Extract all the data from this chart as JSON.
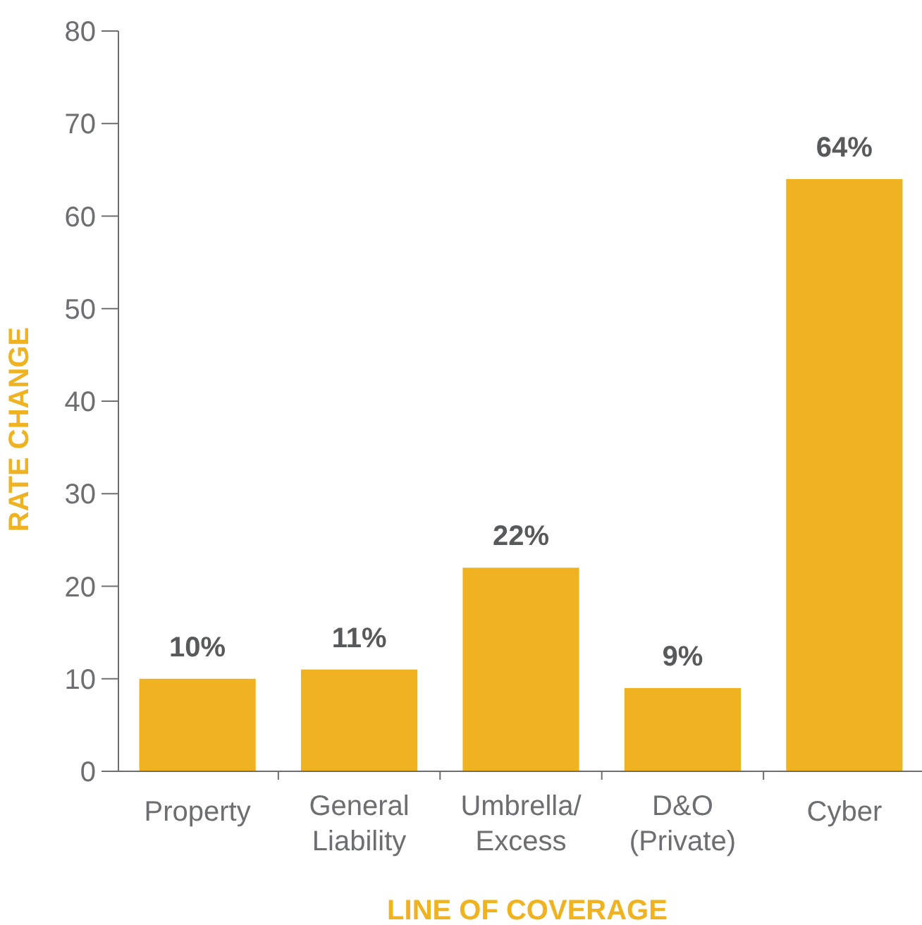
{
  "chart_data": {
    "type": "bar",
    "xlabel": "LINE OF COVERAGE",
    "ylabel": "RATE CHANGE",
    "categories": [
      "Property",
      "General Liability",
      "Umbrella/Excess",
      "D&O (Private)",
      "Cyber"
    ],
    "values": [
      10,
      11,
      22,
      9,
      64
    ],
    "value_labels": [
      "10%",
      "11%",
      "22%",
      "9%",
      "64%"
    ],
    "color": "#efb321",
    "ylim": [
      0,
      80
    ],
    "yticks": [
      0,
      10,
      20,
      30,
      40,
      50,
      60,
      70,
      80
    ],
    "grid": false
  }
}
